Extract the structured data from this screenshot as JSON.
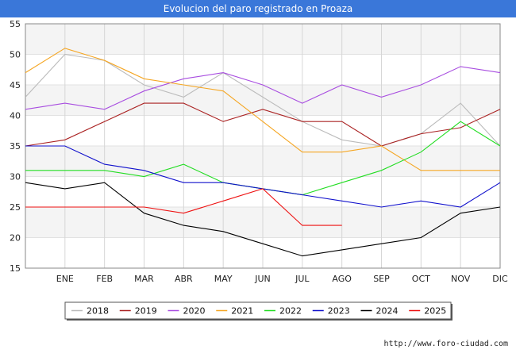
{
  "chart_data": {
    "type": "line",
    "title": "Evolucion del paro registrado en Proaza",
    "categories": [
      "",
      "ENE",
      "FEB",
      "MAR",
      "ABR",
      "MAY",
      "JUN",
      "JUL",
      "AGO",
      "SEP",
      "OCT",
      "NOV",
      "DIC"
    ],
    "ylim": [
      15,
      55
    ],
    "yticks": [
      15,
      20,
      25,
      30,
      35,
      40,
      45,
      50,
      55
    ],
    "xlabel": "",
    "ylabel": "",
    "grid": true,
    "legend_position": "bottom",
    "series": [
      {
        "name": "2018",
        "color": "#bbbbbb",
        "values": [
          43,
          50,
          49,
          45,
          43,
          47,
          43,
          39,
          36,
          35,
          37,
          42,
          35
        ]
      },
      {
        "name": "2019",
        "color": "#aa2222",
        "values": [
          35,
          36,
          39,
          42,
          42,
          39,
          41,
          39,
          39,
          35,
          37,
          38,
          41
        ]
      },
      {
        "name": "2020",
        "color": "#a84de0",
        "values": [
          41,
          42,
          41,
          44,
          46,
          47,
          45,
          42,
          45,
          43,
          45,
          48,
          47
        ]
      },
      {
        "name": "2021",
        "color": "#f5a623",
        "values": [
          47,
          51,
          49,
          46,
          45,
          44,
          39,
          34,
          34,
          35,
          31,
          31,
          31
        ]
      },
      {
        "name": "2022",
        "color": "#22dd22",
        "values": [
          31,
          31,
          31,
          30,
          32,
          29,
          28,
          27,
          29,
          31,
          34,
          39,
          35
        ]
      },
      {
        "name": "2023",
        "color": "#1111cc",
        "values": [
          35,
          35,
          32,
          31,
          29,
          29,
          28,
          27,
          26,
          25,
          26,
          25,
          29
        ]
      },
      {
        "name": "2024",
        "color": "#000000",
        "values": [
          29,
          28,
          29,
          24,
          22,
          21,
          19,
          17,
          18,
          19,
          20,
          24,
          25
        ]
      },
      {
        "name": "2025",
        "color": "#ee1111",
        "values": [
          25,
          25,
          25,
          25,
          24,
          26,
          28,
          22,
          22,
          null,
          null,
          null,
          null
        ]
      }
    ]
  },
  "footer": {
    "url": "http://www.foro-ciudad.com"
  }
}
